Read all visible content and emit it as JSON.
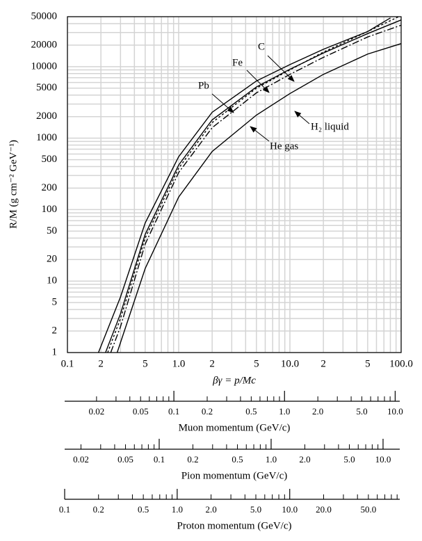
{
  "chart_data": {
    "type": "line",
    "xlabel": "βγ = p/Mc",
    "ylabel": "R/M (g cm⁻² GeV⁻¹)",
    "xscale": "log",
    "yscale": "log",
    "grid": true,
    "xlim": [
      0.1,
      100
    ],
    "ylim": [
      1,
      50000
    ],
    "xticks": [
      0.1,
      {
        "value": 0.2,
        "label": "2"
      },
      {
        "value": 0.5,
        "label": "5"
      },
      {
        "value": 1,
        "label": "1.0"
      },
      {
        "value": 2,
        "label": "2"
      },
      {
        "value": 5,
        "label": "5"
      },
      {
        "value": 10,
        "label": "10.0"
      },
      {
        "value": 20,
        "label": "2"
      },
      {
        "value": 50,
        "label": "5"
      },
      {
        "value": 100,
        "label": "100.0"
      }
    ],
    "yticks": [
      1,
      2,
      5,
      10,
      20,
      50,
      100,
      200,
      500,
      1000,
      2000,
      5000,
      10000,
      20000,
      50000
    ],
    "x_minor_grid": [
      0.3,
      0.4,
      0.6,
      0.7,
      0.8,
      0.9,
      3,
      4,
      6,
      7,
      8,
      9,
      30,
      40,
      60,
      70,
      80,
      90
    ],
    "y_minor_grid": [
      3,
      4,
      6,
      7,
      8,
      9,
      30,
      40,
      60,
      70,
      80,
      90,
      300,
      400,
      600,
      700,
      800,
      900,
      3000,
      4000,
      6000,
      7000,
      8000,
      9000,
      30000,
      40000
    ],
    "series": [
      {
        "name": "Pb",
        "color": "#000000",
        "dash": "solid",
        "x": [
          0.19,
          0.3,
          0.5,
          1,
          2,
          5,
          10,
          20,
          50,
          80
        ],
        "values": [
          1,
          6,
          65,
          550,
          2300,
          6300,
          10700,
          17500,
          31000,
          48000
        ]
      },
      {
        "name": "Fe",
        "color": "#000000",
        "dash": "solid",
        "x": [
          0.22,
          0.3,
          0.5,
          1,
          2,
          5,
          10,
          20,
          50,
          100
        ],
        "values": [
          1,
          3.5,
          45,
          420,
          1800,
          5200,
          9200,
          15500,
          29000,
          45000
        ]
      },
      {
        "name": "C",
        "color": "#000000",
        "dash": "dotted",
        "x": [
          0.23,
          0.3,
          0.5,
          1,
          2,
          5,
          10,
          20,
          50,
          95
        ],
        "values": [
          1,
          3,
          40,
          380,
          1650,
          5000,
          9000,
          16000,
          31000,
          50000
        ]
      },
      {
        "name": "He gas",
        "color": "#000000",
        "dash": "dashdot",
        "x": [
          0.245,
          0.3,
          0.5,
          1,
          2,
          5,
          10,
          20,
          50,
          100
        ],
        "values": [
          1,
          2.3,
          33,
          330,
          1400,
          4300,
          7800,
          13500,
          26000,
          38000
        ]
      },
      {
        "name": "H₂ liquid",
        "color": "#000000",
        "dash": "solid",
        "x": [
          0.28,
          0.5,
          1,
          2,
          5,
          10,
          20,
          50,
          100
        ],
        "values": [
          1,
          15,
          150,
          650,
          2100,
          4200,
          7800,
          15000,
          21000
        ]
      }
    ],
    "momentum_axes": [
      {
        "title": "Muon momentum (GeV/c)",
        "xlim": [
          0.0103,
          11
        ],
        "ticks": [
          0.02,
          0.05,
          0.1,
          0.2,
          0.5,
          {
            "value": 1,
            "label": "1.0"
          },
          {
            "value": 2,
            "label": "2.0"
          },
          {
            "value": 5,
            "label": "5.0"
          },
          {
            "value": 10,
            "label": "10.0"
          }
        ],
        "major_ticks": [
          0.1,
          1,
          10
        ],
        "minor_ticks": [
          0.02,
          0.03,
          0.04,
          0.05,
          0.06,
          0.07,
          0.08,
          0.09,
          0.2,
          0.3,
          0.4,
          0.5,
          0.6,
          0.7,
          0.8,
          0.9,
          2,
          3,
          4,
          5,
          6,
          7,
          8,
          9
        ]
      },
      {
        "title": "Pion momentum (GeV/c)",
        "xlim": [
          0.0143,
          14.1
        ],
        "ticks": [
          0.02,
          0.05,
          0.1,
          0.2,
          0.5,
          {
            "value": 1,
            "label": "1.0"
          },
          {
            "value": 2,
            "label": "2.0"
          },
          {
            "value": 5,
            "label": "5.0"
          },
          {
            "value": 10,
            "label": "10.0"
          }
        ],
        "major_ticks": [
          0.1,
          1,
          10
        ],
        "minor_ticks": [
          0.02,
          0.03,
          0.04,
          0.05,
          0.06,
          0.07,
          0.08,
          0.09,
          0.2,
          0.3,
          0.4,
          0.5,
          0.6,
          0.7,
          0.8,
          0.9,
          2,
          3,
          4,
          5,
          6,
          7,
          8,
          9
        ]
      },
      {
        "title": "Proton momentum (GeV/c)",
        "xlim": [
          0.1,
          95
        ],
        "ticks": [
          0.1,
          0.2,
          0.5,
          {
            "value": 1,
            "label": "1.0"
          },
          {
            "value": 2,
            "label": "2.0"
          },
          {
            "value": 5,
            "label": "5.0"
          },
          {
            "value": 10,
            "label": "10.0"
          },
          {
            "value": 20,
            "label": "20.0"
          },
          {
            "value": 50,
            "label": "50.0"
          }
        ],
        "major_ticks": [
          0.1,
          1,
          10
        ],
        "minor_ticks": [
          0.2,
          0.3,
          0.4,
          0.5,
          0.6,
          0.7,
          0.8,
          0.9,
          2,
          3,
          4,
          5,
          6,
          7,
          8,
          9,
          20,
          30,
          40,
          50,
          60,
          70,
          80,
          90
        ]
      }
    ]
  }
}
